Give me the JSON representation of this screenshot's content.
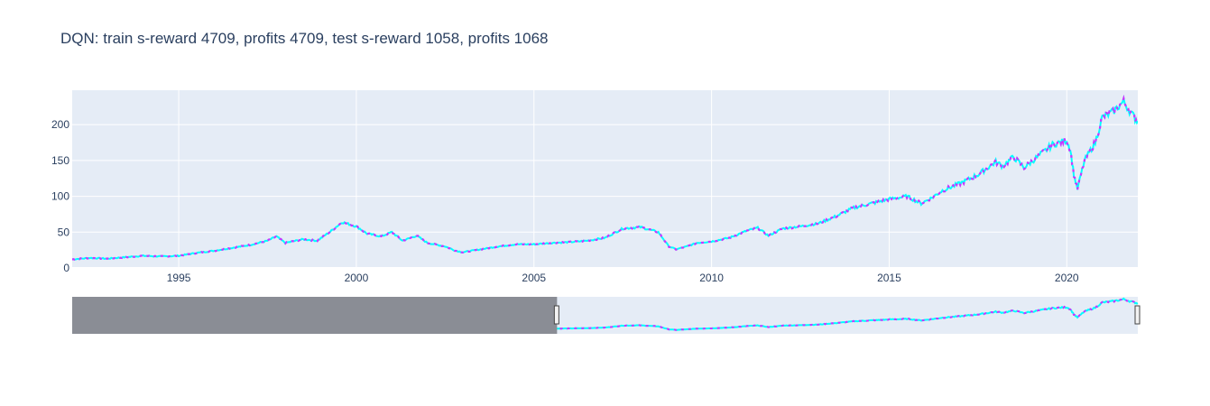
{
  "chart_data": {
    "type": "line",
    "title": "DQN: train s-reward 4709, profits 4709, test s-reward 1058, profits 1068",
    "xlabel": "",
    "ylabel": "",
    "xlim": [
      1992.0,
      2022.0
    ],
    "ylim": [
      0,
      248
    ],
    "x_ticks": [
      1995,
      2000,
      2005,
      2010,
      2015,
      2020
    ],
    "x_tick_labels": [
      "1995",
      "2000",
      "2005",
      "2010",
      "2015",
      "2020"
    ],
    "y_ticks": [
      0,
      50,
      100,
      150,
      200
    ],
    "y_tick_labels": [
      "0",
      "50",
      "100",
      "150",
      "200"
    ],
    "grid": true,
    "legend": "none",
    "colors": {
      "price_line": "#00ffff",
      "action_markers": "#cc33ff",
      "plot_bg": "#e5ecf6",
      "grid": "#ffffff",
      "rangeslider_mask": "#8a8d95"
    },
    "series": [
      {
        "x": [
          1992.0,
          1992.5,
          1993.0,
          1993.5,
          1994.0,
          1994.5,
          1995.0,
          1995.5,
          1996.0,
          1996.5,
          1997.0,
          1997.5,
          1997.75,
          1998.0,
          1998.5,
          1998.9,
          1999.3,
          1999.6,
          2000.0,
          2000.3,
          2000.7,
          2001.0,
          2001.3,
          2001.7,
          2002.0,
          2002.5,
          2002.8,
          2003.0,
          2003.5,
          2004.0,
          2004.5,
          2005.0,
          2005.5,
          2006.0,
          2006.5,
          2007.0,
          2007.5,
          2008.0,
          2008.5,
          2008.8,
          2009.0,
          2009.3,
          2009.6,
          2010.0,
          2010.5,
          2011.0,
          2011.3,
          2011.6,
          2012.0,
          2012.5,
          2013.0,
          2013.5,
          2014.0,
          2014.5,
          2015.0,
          2015.5,
          2015.9,
          2016.2,
          2016.5,
          2017.0,
          2017.5,
          2018.0,
          2018.2,
          2018.5,
          2018.8,
          2019.0,
          2019.3,
          2019.6,
          2020.0,
          2020.1,
          2020.2,
          2020.3,
          2020.5,
          2020.8,
          2021.0,
          2021.3,
          2021.6,
          2021.9,
          2022.0
        ],
        "values": [
          12,
          14,
          13,
          15,
          17,
          16,
          17,
          21,
          24,
          28,
          32,
          38,
          44,
          35,
          40,
          38,
          52,
          64,
          58,
          48,
          44,
          50,
          38,
          45,
          35,
          30,
          24,
          22,
          26,
          30,
          33,
          33,
          35,
          36,
          38,
          42,
          55,
          57,
          50,
          30,
          26,
          30,
          35,
          37,
          42,
          52,
          56,
          45,
          55,
          58,
          62,
          72,
          84,
          90,
          96,
          100,
          90,
          98,
          108,
          118,
          130,
          148,
          142,
          155,
          140,
          148,
          160,
          172,
          178,
          165,
          130,
          110,
          150,
          175,
          210,
          218,
          232,
          210,
          205
        ]
      }
    ],
    "rangeslider": {
      "selected_range": [
        2005.65,
        2022.0
      ]
    }
  }
}
